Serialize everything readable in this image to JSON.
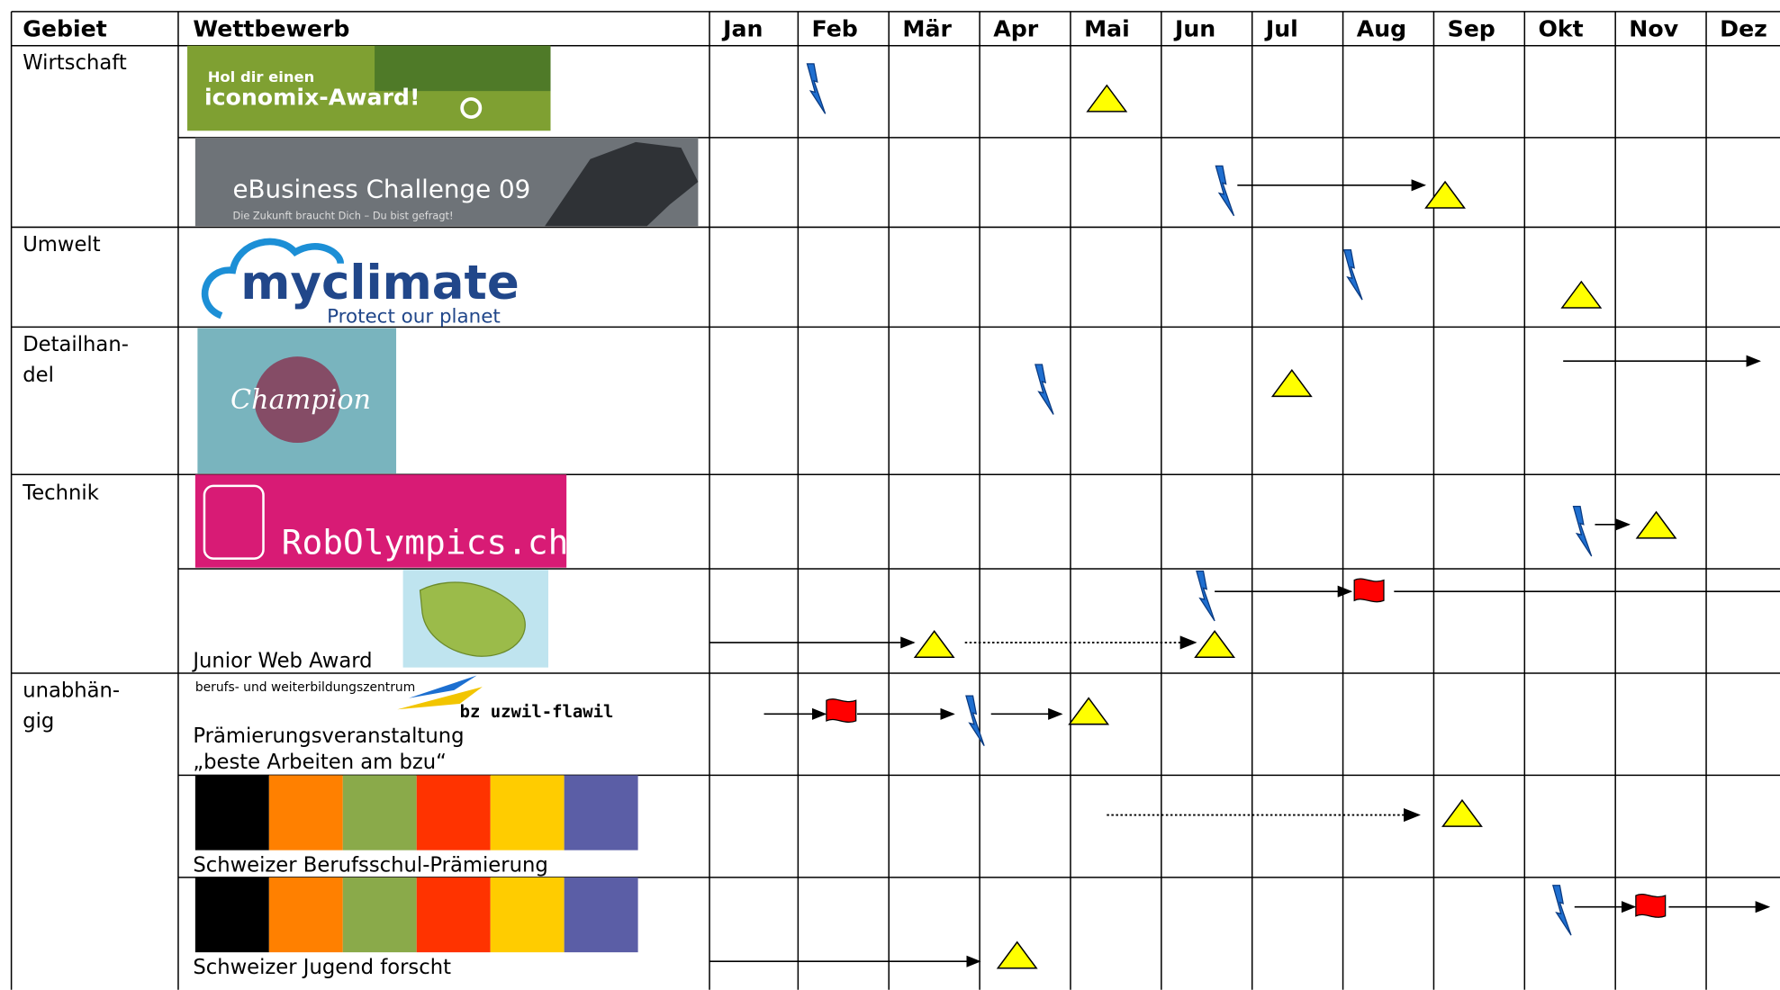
{
  "header": {
    "gebiet": "Gebiet",
    "wettbewerb": "Wettbewerb",
    "months": [
      "Jan",
      "Feb",
      "Mär",
      "Apr",
      "Mai",
      "Jun",
      "Jul",
      "Aug",
      "Sep",
      "Okt",
      "Nov",
      "Dez"
    ]
  },
  "areas": [
    [
      "Wirtschaft"
    ],
    [
      "Umwelt"
    ],
    [
      "Detailhan-",
      "del"
    ],
    [
      "Technik"
    ],
    [
      "unabhän-",
      "gig"
    ]
  ],
  "competitions": [
    {
      "logo": [
        "Hol dir einen",
        "iconomix-Award!"
      ]
    },
    {
      "logo": [
        "eBusiness Challenge 09",
        "Die Zukunft braucht Dich – Du bist gefragt!"
      ]
    },
    {
      "logo": [
        "myclimate",
        "Protect our planet"
      ]
    },
    {
      "logo": [
        "Champion"
      ]
    },
    {
      "logo": [
        "RobOlympics.ch"
      ]
    },
    {
      "caption": [
        "Junior Web Award"
      ]
    },
    {
      "logo": [
        "berufs- und weiterbildungszentrum",
        "bz uzwil-flawil"
      ],
      "caption": [
        "Prämierungsveranstaltung",
        "„beste Arbeiten am bzu“"
      ]
    },
    {
      "caption": [
        "Schweizer Berufsschul-Prämierung"
      ]
    },
    {
      "caption": [
        "Schweizer Jugend forscht"
      ]
    }
  ]
}
